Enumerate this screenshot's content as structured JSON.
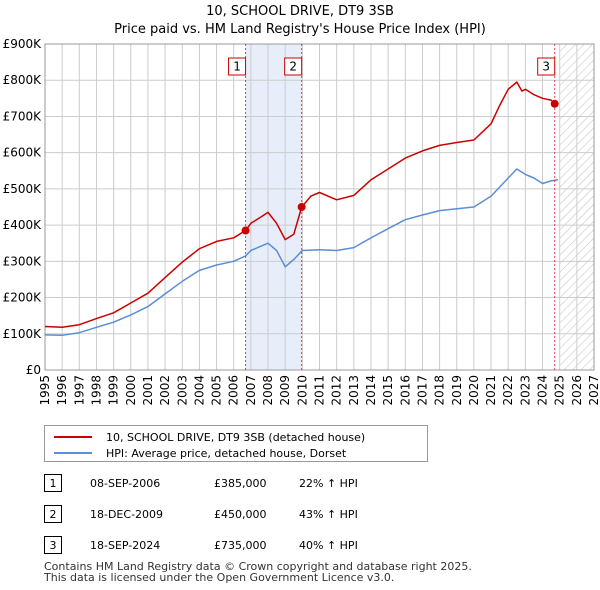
{
  "chart_data": {
    "type": "line",
    "title": "10, SCHOOL DRIVE, DT9 3SB",
    "subtitle": "Price paid vs. HM Land Registry's House Price Index (HPI)",
    "x_range": [
      1995,
      2027
    ],
    "ylim": [
      0,
      900000
    ],
    "y_ticks": [
      0,
      100000,
      200000,
      300000,
      400000,
      500000,
      600000,
      700000,
      800000,
      900000
    ],
    "y_tick_labels": [
      "£0",
      "£100K",
      "£200K",
      "£300K",
      "£400K",
      "£500K",
      "£600K",
      "£700K",
      "£800K",
      "£900K"
    ],
    "x_ticks": [
      "1995",
      "1996",
      "1997",
      "1998",
      "1999",
      "2000",
      "2001",
      "2002",
      "2003",
      "2004",
      "2005",
      "2006",
      "2007",
      "2008",
      "2009",
      "2010",
      "2011",
      "2012",
      "2013",
      "2014",
      "2015",
      "2016",
      "2017",
      "2018",
      "2019",
      "2020",
      "2021",
      "2022",
      "2023",
      "2024",
      "2025",
      "2026",
      "2027"
    ],
    "grid": true,
    "shaded_period": [
      2006.69,
      2009.96
    ],
    "hatched_from": 2025.0,
    "series": [
      {
        "name": "10, SCHOOL DRIVE, DT9 3SB (detached house)",
        "color": "#cc0000",
        "x": [
          1995,
          1996,
          1997,
          1998,
          1999,
          2000,
          2001,
          2002,
          2003,
          2004,
          2005,
          2006,
          2006.69,
          2007,
          2007.5,
          2008,
          2008.5,
          2009,
          2009.5,
          2009.96,
          2010.5,
          2011,
          2012,
          2013,
          2014,
          2015,
          2016,
          2017,
          2018,
          2019,
          2020,
          2021,
          2021.5,
          2022,
          2022.5,
          2022.8,
          2023,
          2023.5,
          2024,
          2024.5,
          2024.71,
          2024.9
        ],
        "values": [
          120000,
          118000,
          125000,
          142000,
          158000,
          185000,
          212000,
          255000,
          298000,
          335000,
          355000,
          365000,
          385000,
          405000,
          420000,
          435000,
          405000,
          360000,
          375000,
          450000,
          480000,
          490000,
          470000,
          482000,
          525000,
          555000,
          585000,
          605000,
          620000,
          628000,
          635000,
          680000,
          730000,
          775000,
          795000,
          770000,
          775000,
          760000,
          750000,
          745000,
          735000,
          735000
        ]
      },
      {
        "name": "HPI: Average price, detached house, Dorset",
        "color": "#5b8ed6",
        "x": [
          1995,
          1996,
          1997,
          1998,
          1999,
          2000,
          2001,
          2002,
          2003,
          2004,
          2005,
          2006,
          2006.69,
          2007,
          2007.5,
          2008,
          2008.5,
          2009,
          2009.5,
          2010,
          2011,
          2012,
          2013,
          2014,
          2015,
          2016,
          2017,
          2018,
          2019,
          2020,
          2021,
          2022,
          2022.5,
          2023,
          2023.5,
          2024,
          2024.5,
          2024.9
        ],
        "values": [
          97000,
          96000,
          103000,
          118000,
          132000,
          152000,
          175000,
          210000,
          245000,
          275000,
          290000,
          300000,
          315000,
          330000,
          340000,
          350000,
          330000,
          285000,
          305000,
          330000,
          332000,
          330000,
          338000,
          365000,
          390000,
          415000,
          428000,
          440000,
          445000,
          450000,
          480000,
          530000,
          555000,
          540000,
          530000,
          515000,
          522000,
          525000
        ]
      }
    ],
    "markers": [
      {
        "label": "1",
        "x": 2006.69,
        "value": 385000
      },
      {
        "label": "2",
        "x": 2009.96,
        "value": 450000
      },
      {
        "label": "3",
        "x": 2024.71,
        "value": 735000
      }
    ]
  },
  "legend": {
    "items": [
      {
        "label": "10, SCHOOL DRIVE, DT9 3SB (detached house)",
        "color": "#cc0000"
      },
      {
        "label": "HPI: Average price, detached house, Dorset",
        "color": "#5b8ed6"
      }
    ]
  },
  "transactions": [
    {
      "num": "1",
      "date": "08-SEP-2006",
      "price": "£385,000",
      "hpi": "22% ↑ HPI"
    },
    {
      "num": "2",
      "date": "18-DEC-2009",
      "price": "£450,000",
      "hpi": "43% ↑ HPI"
    },
    {
      "num": "3",
      "date": "18-SEP-2024",
      "price": "£735,000",
      "hpi": "40% ↑ HPI"
    }
  ],
  "footer": {
    "line1": "Contains HM Land Registry data © Crown copyright and database right 2025.",
    "line2": "This data is licensed under the Open Government Licence v3.0."
  }
}
